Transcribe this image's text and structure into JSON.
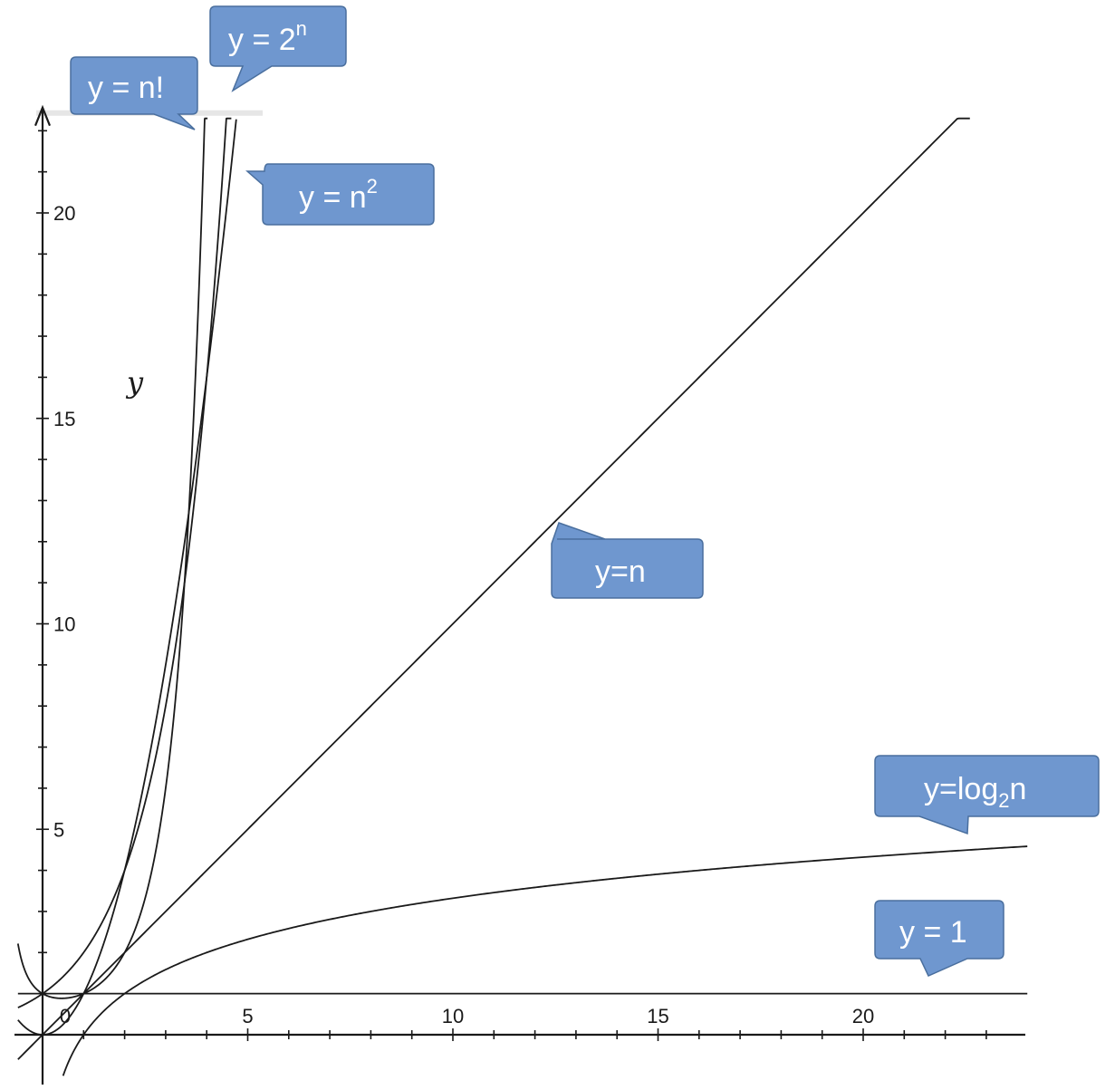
{
  "chart_data": {
    "type": "line",
    "ylabel": "y",
    "xlabel": "",
    "xlim": [
      -0.6,
      24
    ],
    "ylim": [
      -1.2,
      22.3
    ],
    "x_ticks": [
      {
        "value": 0,
        "label": "0"
      },
      {
        "value": 5,
        "label": "5"
      },
      {
        "value": 10,
        "label": "10"
      },
      {
        "value": 15,
        "label": "15"
      },
      {
        "value": 20,
        "label": "20"
      }
    ],
    "y_ticks": [
      {
        "value": 5,
        "label": "5"
      },
      {
        "value": 10,
        "label": "10"
      },
      {
        "value": 15,
        "label": "15"
      },
      {
        "value": 20,
        "label": "20"
      }
    ],
    "series": [
      {
        "name": "y = n!",
        "function": "factorial",
        "x_range": [
          -0.6,
          4.02
        ]
      },
      {
        "name": "y = 2^n",
        "function": "pow2",
        "x_range": [
          -0.6,
          4.6
        ]
      },
      {
        "name": "y = n^2",
        "function": "square",
        "x_range": [
          -0.6,
          4.72
        ]
      },
      {
        "name": "y=n",
        "function": "linear",
        "x_range": [
          -0.6,
          22.6
        ]
      },
      {
        "name": "y=log2n",
        "function": "log2",
        "x_range": [
          0.5,
          24
        ]
      },
      {
        "name": "y = 1",
        "function": "constant",
        "x_range": [
          -0.6,
          24
        ]
      }
    ]
  },
  "callouts": {
    "factorial": {
      "main": "y = n!",
      "sup": ""
    },
    "pow2": {
      "main": "y = 2",
      "sup": "n"
    },
    "square": {
      "main": "y = n",
      "sup": "2"
    },
    "linear": {
      "main": "y=n"
    },
    "log2": {
      "pre": "y=log",
      "sub": "2",
      "post": "n"
    },
    "constant": {
      "main": "y = 1"
    }
  },
  "colors": {
    "callout_fill": "#6f97cf",
    "callout_text": "#ffffff",
    "curve": "#1a1a1a"
  }
}
